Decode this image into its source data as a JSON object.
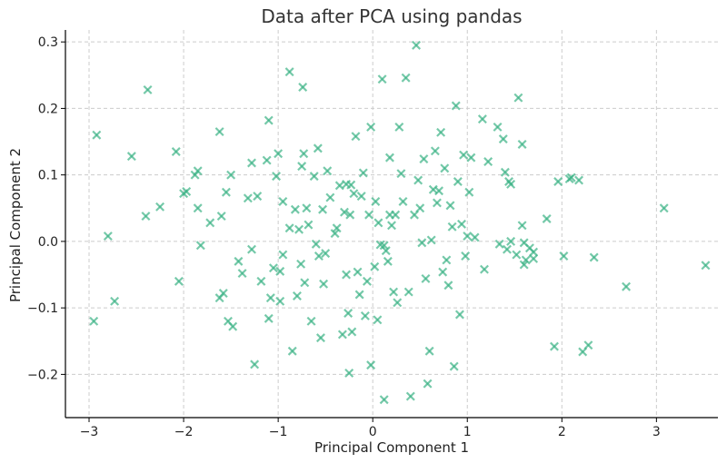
{
  "chart_data": {
    "type": "scatter",
    "title": "Data after PCA using pandas",
    "xlabel": "Principal Component 1",
    "ylabel": "Principal Component 2",
    "xlim": [
      -3.25,
      3.65
    ],
    "ylim": [
      -0.265,
      0.318
    ],
    "xticks": [
      -3,
      -2,
      -1,
      0,
      1,
      2,
      3
    ],
    "xtick_labels": [
      "−3",
      "−2",
      "−1",
      "0",
      "1",
      "2",
      "3"
    ],
    "yticks": [
      -0.2,
      -0.1,
      0.0,
      0.1,
      0.2,
      0.3
    ],
    "ytick_labels": [
      "−0.2",
      "−0.1",
      "0.0",
      "0.1",
      "0.2",
      "0.3"
    ],
    "grid": true,
    "marker": "x",
    "color": "#3cb386",
    "points": [
      [
        -2.92,
        0.16
      ],
      [
        -2.95,
        -0.12
      ],
      [
        -2.8,
        0.008
      ],
      [
        -2.73,
        -0.09
      ],
      [
        -2.55,
        0.128
      ],
      [
        -2.38,
        0.228
      ],
      [
        -2.4,
        0.038
      ],
      [
        -2.25,
        0.052
      ],
      [
        -2.08,
        0.135
      ],
      [
        -2.05,
        -0.06
      ],
      [
        -2.0,
        0.072
      ],
      [
        -1.97,
        0.075
      ],
      [
        -1.88,
        0.1
      ],
      [
        -1.85,
        0.106
      ],
      [
        -1.82,
        -0.006
      ],
      [
        -1.85,
        0.05
      ],
      [
        -1.72,
        0.028
      ],
      [
        -1.62,
        0.165
      ],
      [
        -1.6,
        0.038
      ],
      [
        -1.62,
        -0.085
      ],
      [
        -1.58,
        -0.078
      ],
      [
        -1.55,
        0.074
      ],
      [
        -1.5,
        0.1
      ],
      [
        -1.53,
        -0.12
      ],
      [
        -1.48,
        -0.128
      ],
      [
        -1.42,
        -0.03
      ],
      [
        -1.38,
        -0.048
      ],
      [
        -1.32,
        0.065
      ],
      [
        -1.28,
        0.118
      ],
      [
        -1.28,
        -0.012
      ],
      [
        -1.25,
        -0.185
      ],
      [
        -1.22,
        0.068
      ],
      [
        -1.18,
        -0.06
      ],
      [
        -1.12,
        0.122
      ],
      [
        -1.1,
        0.182
      ],
      [
        -1.1,
        -0.116
      ],
      [
        -1.08,
        -0.085
      ],
      [
        -1.05,
        -0.04
      ],
      [
        -1.02,
        0.098
      ],
      [
        -1.0,
        0.132
      ],
      [
        -0.98,
        -0.045
      ],
      [
        -0.98,
        -0.09
      ],
      [
        -0.95,
        0.06
      ],
      [
        -0.95,
        -0.02
      ],
      [
        -0.88,
        0.255
      ],
      [
        -0.88,
        0.02
      ],
      [
        -0.85,
        -0.165
      ],
      [
        -0.82,
        0.048
      ],
      [
        -0.8,
        -0.082
      ],
      [
        -0.78,
        0.018
      ],
      [
        -0.76,
        -0.034
      ],
      [
        -0.75,
        0.113
      ],
      [
        -0.74,
        0.232
      ],
      [
        -0.73,
        0.132
      ],
      [
        -0.72,
        -0.062
      ],
      [
        -0.7,
        0.05
      ],
      [
        -0.68,
        0.025
      ],
      [
        -0.65,
        -0.12
      ],
      [
        -0.62,
        0.098
      ],
      [
        -0.6,
        -0.004
      ],
      [
        -0.58,
        0.14
      ],
      [
        -0.57,
        -0.022
      ],
      [
        -0.55,
        -0.145
      ],
      [
        -0.53,
        0.048
      ],
      [
        -0.52,
        -0.064
      ],
      [
        -0.5,
        -0.018
      ],
      [
        -0.48,
        0.106
      ],
      [
        -0.45,
        0.066
      ],
      [
        -0.4,
        0.012
      ],
      [
        -0.38,
        0.02
      ],
      [
        -0.35,
        0.084
      ],
      [
        -0.32,
        -0.14
      ],
      [
        -0.3,
        0.044
      ],
      [
        -0.28,
        0.086
      ],
      [
        -0.28,
        -0.05
      ],
      [
        -0.26,
        -0.108
      ],
      [
        -0.25,
        -0.198
      ],
      [
        -0.24,
        0.04
      ],
      [
        -0.23,
        0.085
      ],
      [
        -0.22,
        -0.136
      ],
      [
        -0.2,
        0.072
      ],
      [
        -0.18,
        0.158
      ],
      [
        -0.16,
        -0.046
      ],
      [
        -0.14,
        -0.08
      ],
      [
        -0.12,
        0.068
      ],
      [
        -0.1,
        0.103
      ],
      [
        -0.08,
        -0.112
      ],
      [
        -0.06,
        -0.06
      ],
      [
        -0.04,
        0.04
      ],
      [
        -0.02,
        0.172
      ],
      [
        -0.02,
        -0.186
      ],
      [
        0.02,
        -0.038
      ],
      [
        0.03,
        0.06
      ],
      [
        0.05,
        -0.118
      ],
      [
        0.06,
        0.028
      ],
      [
        0.08,
        -0.005
      ],
      [
        0.1,
        0.244
      ],
      [
        0.12,
        -0.006
      ],
      [
        0.12,
        -0.238
      ],
      [
        0.14,
        -0.014
      ],
      [
        0.16,
        -0.03
      ],
      [
        0.18,
        0.04
      ],
      [
        0.18,
        0.126
      ],
      [
        0.2,
        0.024
      ],
      [
        0.22,
        -0.076
      ],
      [
        0.24,
        0.04
      ],
      [
        0.26,
        -0.092
      ],
      [
        0.28,
        0.172
      ],
      [
        0.3,
        0.102
      ],
      [
        0.32,
        0.06
      ],
      [
        0.35,
        0.246
      ],
      [
        0.38,
        -0.076
      ],
      [
        0.4,
        -0.233
      ],
      [
        0.44,
        0.04
      ],
      [
        0.46,
        0.295
      ],
      [
        0.48,
        0.092
      ],
      [
        0.5,
        0.05
      ],
      [
        0.52,
        -0.002
      ],
      [
        0.54,
        0.124
      ],
      [
        0.56,
        -0.056
      ],
      [
        0.58,
        -0.214
      ],
      [
        0.6,
        -0.165
      ],
      [
        0.62,
        0.002
      ],
      [
        0.64,
        0.078
      ],
      [
        0.66,
        0.136
      ],
      [
        0.68,
        0.058
      ],
      [
        0.7,
        0.076
      ],
      [
        0.72,
        0.164
      ],
      [
        0.74,
        -0.046
      ],
      [
        0.76,
        0.11
      ],
      [
        0.78,
        -0.028
      ],
      [
        0.8,
        -0.066
      ],
      [
        0.82,
        0.054
      ],
      [
        0.84,
        0.022
      ],
      [
        0.86,
        -0.188
      ],
      [
        0.88,
        0.204
      ],
      [
        0.9,
        0.09
      ],
      [
        0.92,
        -0.11
      ],
      [
        0.94,
        0.026
      ],
      [
        0.96,
        0.13
      ],
      [
        0.98,
        -0.022
      ],
      [
        1.0,
        0.008
      ],
      [
        1.02,
        0.074
      ],
      [
        1.04,
        0.126
      ],
      [
        1.08,
        0.006
      ],
      [
        1.16,
        0.184
      ],
      [
        1.18,
        -0.042
      ],
      [
        1.22,
        0.12
      ],
      [
        1.32,
        0.172
      ],
      [
        1.34,
        -0.004
      ],
      [
        1.38,
        0.154
      ],
      [
        1.4,
        0.104
      ],
      [
        1.42,
        -0.012
      ],
      [
        1.44,
        0.09
      ],
      [
        1.46,
        0.086
      ],
      [
        1.46,
        0.0
      ],
      [
        1.52,
        -0.02
      ],
      [
        1.54,
        0.216
      ],
      [
        1.58,
        0.146
      ],
      [
        1.58,
        0.024
      ],
      [
        1.6,
        -0.002
      ],
      [
        1.6,
        -0.035
      ],
      [
        1.62,
        -0.028
      ],
      [
        1.66,
        -0.01
      ],
      [
        1.7,
        -0.016
      ],
      [
        1.7,
        -0.026
      ],
      [
        1.84,
        0.034
      ],
      [
        1.92,
        -0.158
      ],
      [
        1.96,
        0.09
      ],
      [
        2.02,
        -0.022
      ],
      [
        2.08,
        0.094
      ],
      [
        2.1,
        0.096
      ],
      [
        2.18,
        0.092
      ],
      [
        2.22,
        -0.166
      ],
      [
        2.28,
        -0.156
      ],
      [
        2.34,
        -0.024
      ],
      [
        2.68,
        -0.068
      ],
      [
        3.08,
        0.05
      ],
      [
        3.52,
        -0.036
      ]
    ]
  }
}
